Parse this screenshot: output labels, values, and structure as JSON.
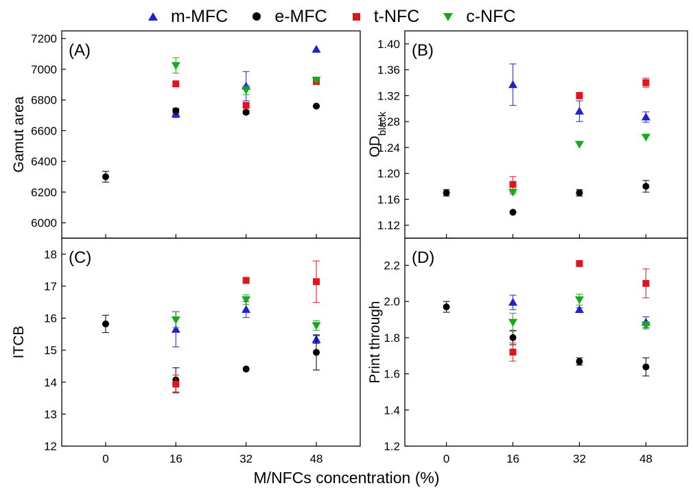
{
  "legend": [
    {
      "name": "m-MFC",
      "marker": "triangle-up",
      "color": "#1f1fd4"
    },
    {
      "name": "e-MFC",
      "marker": "circle",
      "color": "#000000"
    },
    {
      "name": "t-NFC",
      "marker": "square",
      "color": "#e0141b"
    },
    {
      "name": "c-NFC",
      "marker": "triangle-down",
      "color": "#18a81b"
    }
  ],
  "xlabel": "M/NFCs concentration (%)",
  "chart_data": [
    {
      "type": "scatter",
      "panel": "(A)",
      "ylabel": "Gamut area",
      "x": [
        0,
        16,
        32,
        48
      ],
      "xlim": [
        -10,
        58
      ],
      "ylim": [
        5900,
        7250
      ],
      "yticks": [
        6000,
        6200,
        6400,
        6600,
        6800,
        7000,
        7200
      ],
      "series": [
        {
          "name": "m-MFC",
          "x": [
            16,
            32,
            48
          ],
          "values": [
            6710,
            6890,
            7130
          ],
          "err": [
            25,
            95,
            0
          ]
        },
        {
          "name": "e-MFC",
          "x": [
            0,
            16,
            32,
            48
          ],
          "values": [
            6300,
            6730,
            6720,
            6760
          ],
          "err": [
            35,
            15,
            10,
            5
          ]
        },
        {
          "name": "t-NFC",
          "x": [
            16,
            32,
            48
          ],
          "values": [
            6905,
            6765,
            6920
          ],
          "err": [
            15,
            10,
            10
          ]
        },
        {
          "name": "c-NFC",
          "x": [
            16,
            32,
            48
          ],
          "values": [
            7025,
            6865,
            6930
          ],
          "err": [
            50,
            30,
            10
          ]
        }
      ]
    },
    {
      "type": "scatter",
      "panel": "(B)",
      "ylabel": "OD",
      "ylabel_sub": "black",
      "x": [
        0,
        16,
        32,
        48
      ],
      "xlim": [
        -10,
        58
      ],
      "ylim": [
        1.1,
        1.42
      ],
      "yticks": [
        "1.12",
        "1.16",
        "1.20",
        "1.24",
        "1.28",
        "1.32",
        "1.36",
        "1.40"
      ],
      "series": [
        {
          "name": "m-MFC",
          "x": [
            16,
            32,
            48
          ],
          "values": [
            1.337,
            1.296,
            1.287
          ],
          "err": [
            0.032,
            0.016,
            0.008
          ]
        },
        {
          "name": "e-MFC",
          "x": [
            0,
            16,
            32,
            48
          ],
          "values": [
            1.17,
            1.14,
            1.17,
            1.18
          ],
          "err": [
            0.005,
            0.0,
            0.005,
            0.009
          ]
        },
        {
          "name": "t-NFC",
          "x": [
            16,
            32,
            48
          ],
          "values": [
            1.183,
            1.32,
            1.34
          ],
          "err": [
            0.012,
            0.005,
            0.007
          ]
        },
        {
          "name": "c-NFC",
          "x": [
            16,
            32,
            48
          ],
          "values": [
            1.171,
            1.245,
            1.256
          ],
          "err": [
            0.003,
            0.0,
            0.0
          ]
        }
      ]
    },
    {
      "type": "scatter",
      "panel": "(C)",
      "ylabel": "ITCB",
      "x": [
        0,
        16,
        32,
        48
      ],
      "xlim": [
        -10,
        58
      ],
      "ylim": [
        12,
        18.5
      ],
      "yticks": [
        12,
        13,
        14,
        15,
        16,
        17,
        18
      ],
      "series": [
        {
          "name": "m-MFC",
          "x": [
            16,
            32,
            48
          ],
          "values": [
            15.65,
            16.27,
            15.33
          ],
          "err": [
            0.55,
            0.25,
            0.12
          ]
        },
        {
          "name": "e-MFC",
          "x": [
            0,
            16,
            32,
            48
          ],
          "values": [
            15.82,
            14.07,
            14.41,
            14.93
          ],
          "err": [
            0.27,
            0.38,
            0.0,
            0.55
          ]
        },
        {
          "name": "t-NFC",
          "x": [
            16,
            32,
            48
          ],
          "values": [
            13.94,
            17.18,
            17.14
          ],
          "err": [
            0.28,
            0.0,
            0.65
          ]
        },
        {
          "name": "c-NFC",
          "x": [
            16,
            32,
            48
          ],
          "values": [
            15.95,
            16.58,
            15.77
          ],
          "err": [
            0.25,
            0.15,
            0.15
          ]
        }
      ]
    },
    {
      "type": "scatter",
      "panel": "(D)",
      "ylabel": "Print through",
      "x": [
        0,
        16,
        32,
        48
      ],
      "xlim": [
        -10,
        58
      ],
      "ylim": [
        1.2,
        2.35
      ],
      "yticks": [
        "1.2",
        "1.4",
        "1.6",
        "1.8",
        "2.0",
        "2.2"
      ],
      "series": [
        {
          "name": "m-MFC",
          "x": [
            16,
            32,
            48
          ],
          "values": [
            1.995,
            1.955,
            1.885
          ],
          "err": [
            0.04,
            0.01,
            0.03
          ]
        },
        {
          "name": "e-MFC",
          "x": [
            0,
            16,
            32,
            48
          ],
          "values": [
            1.97,
            1.8,
            1.668,
            1.638
          ],
          "err": [
            0.03,
            0.04,
            0.02,
            0.05
          ]
        },
        {
          "name": "t-NFC",
          "x": [
            16,
            32,
            48
          ],
          "values": [
            1.72,
            2.21,
            2.1
          ],
          "err": [
            0.05,
            0.0,
            0.08
          ]
        },
        {
          "name": "c-NFC",
          "x": [
            16,
            32,
            48
          ],
          "values": [
            1.885,
            2.01,
            1.868
          ],
          "err": [
            0.05,
            0.03,
            0.02
          ]
        }
      ]
    }
  ]
}
